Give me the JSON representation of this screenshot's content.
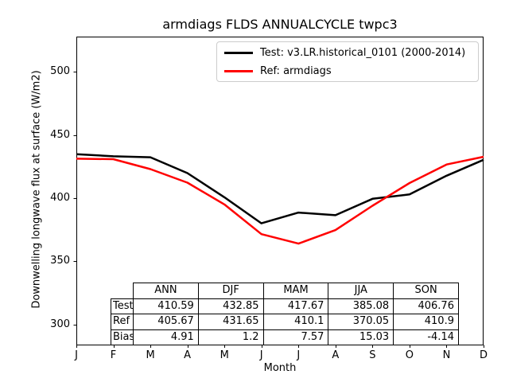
{
  "title": "armdiags FLDS ANNUALCYCLE twpc3",
  "chart_data": {
    "type": "line",
    "title": "armdiags FLDS ANNUALCYCLE twpc3",
    "xlabel": "Month",
    "ylabel": "Downwelling longwave flux at surface (W/m2)",
    "x_tick_labels": [
      "J",
      "F",
      "M",
      "A",
      "M",
      "J",
      "J",
      "A",
      "S",
      "O",
      "N",
      "D"
    ],
    "y_ticks": [
      300,
      350,
      400,
      450,
      500
    ],
    "ylim": [
      284,
      528
    ],
    "xlim": [
      0,
      11
    ],
    "grid": false,
    "legend_position": "upper right",
    "series": [
      {
        "name": "Test: v3.LR.historical_0101 (2000-2014)",
        "color": "#000000",
        "values": [
          434.9,
          433.2,
          432.4,
          419.9,
          400.7,
          380.1,
          388.6,
          386.5,
          399.5,
          403.0,
          417.8,
          430.4
        ]
      },
      {
        "name": "Ref: armdiags",
        "color": "#ff0000",
        "values": [
          431.3,
          430.9,
          423.0,
          412.3,
          395.0,
          371.5,
          364.0,
          374.7,
          394.0,
          412.0,
          426.7,
          432.8
        ]
      }
    ],
    "stats_table": {
      "columns": [
        "ANN",
        "DJF",
        "MAM",
        "JJA",
        "SON"
      ],
      "rows": [
        {
          "label": "Test",
          "values": [
            "410.59",
            "432.85",
            "417.67",
            "385.08",
            "406.76"
          ]
        },
        {
          "label": "Ref",
          "values": [
            "405.67",
            "431.65",
            "410.1",
            "370.05",
            "410.9"
          ]
        },
        {
          "label": "Bias",
          "values": [
            "4.91",
            "1.2",
            "7.57",
            "15.03",
            "-4.14"
          ]
        }
      ]
    }
  }
}
